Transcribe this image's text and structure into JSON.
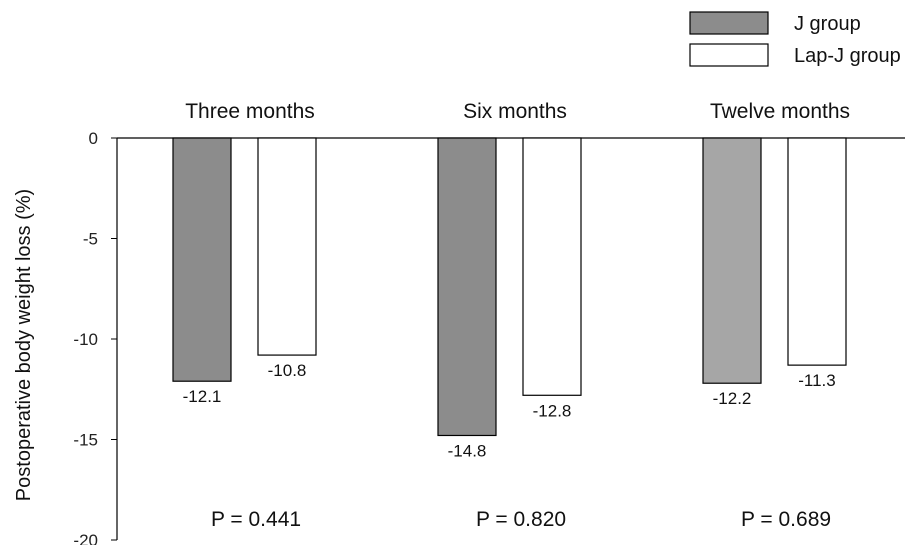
{
  "chart_data": {
    "type": "bar",
    "orientation": "downward",
    "categories": [
      "Three months",
      "Six months",
      "Twelve months"
    ],
    "series": [
      {
        "name": "J group",
        "values": [
          -12.1,
          -14.8,
          -12.2
        ],
        "colors": [
          "#8c8c8c",
          "#8c8c8c",
          "#a6a6a6"
        ]
      },
      {
        "name": "Lap-J group",
        "values": [
          -10.8,
          -12.8,
          -11.3
        ],
        "colors": [
          "#ffffff",
          "#ffffff",
          "#ffffff"
        ]
      }
    ],
    "data_labels": [
      [
        "-12.1",
        "-14.8",
        "-12.2"
      ],
      [
        "-10.8",
        "-12.8",
        "-11.3"
      ]
    ],
    "p_values": [
      "P = 0.441",
      "P = 0.820",
      "P = 0.689"
    ],
    "ylabel": "Postoperative body weight loss (%)",
    "ylim": [
      -20,
      0
    ],
    "yticks": [
      0,
      -5,
      -10,
      -15,
      -20
    ],
    "ytick_labels": [
      "0",
      "-5",
      "-10",
      "-15",
      "-20"
    ],
    "grid": false,
    "legend_position": "top-right"
  },
  "colors": {
    "j_legend": "#8c8c8c",
    "lapj": "#ffffff",
    "stroke": "#000000"
  }
}
